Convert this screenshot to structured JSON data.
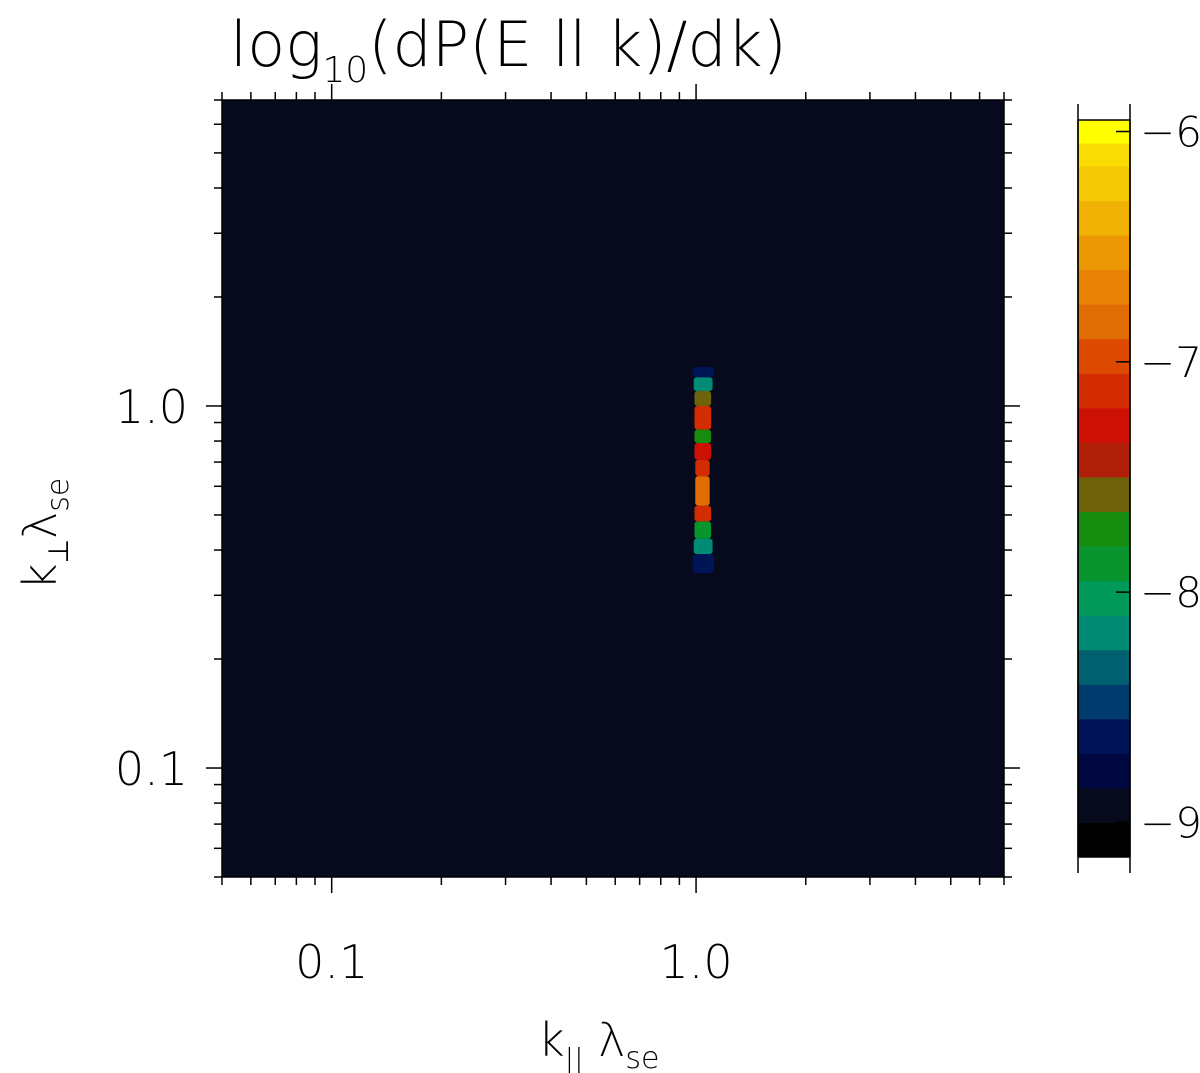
{
  "chart_data": {
    "type": "heatmap",
    "title": {
      "main": "log",
      "sub": "10",
      "rest": "(dP(E ll k)/dk)"
    },
    "xlabel": {
      "main": "k",
      "sub": "||",
      "mid": " λ",
      "sub2": "se"
    },
    "ylabel": {
      "main": "k",
      "sub": "⊥",
      "mid": "λ",
      "sub2": "se"
    },
    "x_scale": "log",
    "y_scale": "log",
    "xlim": [
      0.05,
      7.0
    ],
    "ylim": [
      0.05,
      7.0
    ],
    "xticks": [
      {
        "value": 0.1,
        "label": "0.1"
      },
      {
        "value": 1.0,
        "label": "1.0"
      }
    ],
    "yticks": [
      {
        "value": 0.1,
        "label": "0.1"
      },
      {
        "value": 1.0,
        "label": "1.0"
      }
    ],
    "background_value": -9,
    "colorbar": {
      "ticks": [
        {
          "value": -6,
          "label": "−6"
        },
        {
          "value": -7,
          "label": "−7"
        },
        {
          "value": -8,
          "label": "−8"
        },
        {
          "value": -9,
          "label": "−9"
        }
      ],
      "range": [
        -9.15,
        -5.95
      ],
      "levels": [
        {
          "from": -9.15,
          "to": -9.0,
          "color": "#000000"
        },
        {
          "from": -9.0,
          "to": -8.85,
          "color": "#060a1c"
        },
        {
          "from": -8.85,
          "to": -8.7,
          "color": "#000640"
        },
        {
          "from": -8.7,
          "to": -8.55,
          "color": "#001458"
        },
        {
          "from": -8.55,
          "to": -8.4,
          "color": "#003c6e"
        },
        {
          "from": -8.4,
          "to": -8.25,
          "color": "#006070"
        },
        {
          "from": -8.25,
          "to": -8.1,
          "color": "#008c74"
        },
        {
          "from": -8.1,
          "to": -7.95,
          "color": "#00995a"
        },
        {
          "from": -7.95,
          "to": -7.8,
          "color": "#08952e"
        },
        {
          "from": -7.8,
          "to": -7.65,
          "color": "#168c0e"
        },
        {
          "from": -7.65,
          "to": -7.5,
          "color": "#6e620c"
        },
        {
          "from": -7.5,
          "to": -7.35,
          "color": "#b02008"
        },
        {
          "from": -7.35,
          "to": -7.2,
          "color": "#cc1004"
        },
        {
          "from": -7.2,
          "to": -7.05,
          "color": "#d42c02"
        },
        {
          "from": -7.05,
          "to": -6.9,
          "color": "#dc4a02"
        },
        {
          "from": -6.9,
          "to": -6.75,
          "color": "#e06c04"
        },
        {
          "from": -6.75,
          "to": -6.6,
          "color": "#e88204"
        },
        {
          "from": -6.6,
          "to": -6.45,
          "color": "#ec9804"
        },
        {
          "from": -6.45,
          "to": -6.3,
          "color": "#f0b004"
        },
        {
          "from": -6.3,
          "to": -6.15,
          "color": "#f4c804"
        },
        {
          "from": -6.15,
          "to": -6.05,
          "color": "#f8dc04"
        },
        {
          "from": -6.05,
          "to": -5.95,
          "color": "#ffff00"
        }
      ]
    },
    "feature_bands": [
      {
        "k_par": [
          0.97,
          1.13
        ],
        "k_perp": [
          0.3,
          0.345
        ],
        "value": -8.95
      },
      {
        "k_par": [
          0.98,
          1.12
        ],
        "k_perp": [
          0.345,
          0.39
        ],
        "value": -8.7
      },
      {
        "k_par": [
          0.985,
          1.11
        ],
        "k_perp": [
          0.39,
          0.43
        ],
        "value": -8.2
      },
      {
        "k_par": [
          0.99,
          1.1
        ],
        "k_perp": [
          0.43,
          0.48
        ],
        "value": -7.9
      },
      {
        "k_par": [
          0.99,
          1.1
        ],
        "k_perp": [
          0.48,
          0.53
        ],
        "value": -7.15
      },
      {
        "k_par": [
          0.995,
          1.09
        ],
        "k_perp": [
          0.53,
          0.64
        ],
        "value": -6.85
      },
      {
        "k_par": [
          0.995,
          1.09
        ],
        "k_perp": [
          0.64,
          0.71
        ],
        "value": -7.2
      },
      {
        "k_par": [
          0.99,
          1.1
        ],
        "k_perp": [
          0.71,
          0.79
        ],
        "value": -7.3
      },
      {
        "k_par": [
          0.99,
          1.1
        ],
        "k_perp": [
          0.79,
          0.86
        ],
        "value": -7.8
      },
      {
        "k_par": [
          0.99,
          1.1
        ],
        "k_perp": [
          0.86,
          1.0
        ],
        "value": -7.2
      },
      {
        "k_par": [
          0.99,
          1.1
        ],
        "k_perp": [
          1.0,
          1.1
        ],
        "value": -7.6
      },
      {
        "k_par": [
          0.985,
          1.11
        ],
        "k_perp": [
          1.1,
          1.2
        ],
        "value": -8.2
      },
      {
        "k_par": [
          0.98,
          1.12
        ],
        "k_perp": [
          1.2,
          1.28
        ],
        "value": -8.6
      }
    ]
  }
}
